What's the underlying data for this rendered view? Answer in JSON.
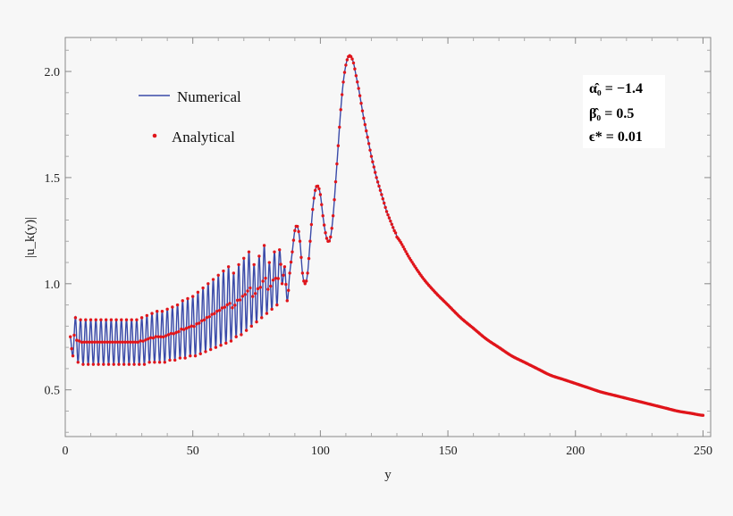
{
  "chart_data": {
    "type": "line",
    "title": "",
    "xlabel": "y",
    "ylabel": "|u_k(y)|",
    "xlim": [
      0,
      253
    ],
    "ylim": [
      0.28,
      2.16
    ],
    "xticks": [
      0,
      50,
      100,
      150,
      200,
      250
    ],
    "yticks": [
      0.5,
      1.0,
      1.5,
      2.0
    ],
    "xtick_labels": [
      "0",
      "50",
      "100",
      "150",
      "200",
      "250"
    ],
    "ytick_labels": [
      "0.5",
      "1.0",
      "1.5",
      "2.0"
    ],
    "grid": false,
    "legend_position": "top-left",
    "colors": {
      "numerical": "#3a4aa8",
      "analytical": "#e0151b",
      "frame": "#888888"
    },
    "series": [
      {
        "name": "Numerical",
        "style": "line"
      },
      {
        "name": "Analytical",
        "style": "points"
      }
    ],
    "curve_samples": {
      "x": [
        2,
        3,
        4,
        5,
        6,
        7,
        8,
        9,
        10,
        11,
        12,
        13,
        14,
        15,
        16,
        17,
        18,
        19,
        20,
        21,
        22,
        23,
        24,
        25,
        26,
        27,
        28,
        29,
        30,
        31,
        32,
        33,
        34,
        35,
        36,
        37,
        38,
        39,
        40,
        41,
        42,
        43,
        44,
        45,
        46,
        47,
        48,
        49,
        50,
        51,
        52,
        53,
        54,
        55,
        56,
        57,
        58,
        59,
        60,
        61,
        62,
        63,
        64,
        65,
        66,
        67,
        68,
        69,
        70,
        71,
        72,
        73,
        74,
        75,
        76,
        77,
        78,
        79,
        80,
        81,
        82,
        83,
        84,
        85,
        86,
        87,
        88,
        89,
        90,
        91,
        92,
        93,
        94,
        95,
        96,
        97,
        98,
        99,
        100,
        101,
        102,
        103,
        104,
        105,
        106,
        107,
        108,
        109,
        110,
        111,
        112,
        113,
        114,
        115,
        116,
        117,
        118,
        119,
        120,
        121,
        122,
        123,
        124,
        125,
        126,
        127,
        128,
        129,
        130,
        135,
        140,
        145,
        150,
        155,
        160,
        165,
        170,
        175,
        180,
        185,
        190,
        195,
        200,
        205,
        210,
        215,
        220,
        225,
        230,
        235,
        240,
        245,
        250
      ],
      "y": [
        0.75,
        0.66,
        0.84,
        0.63,
        0.83,
        0.62,
        0.83,
        0.62,
        0.83,
        0.62,
        0.83,
        0.62,
        0.83,
        0.62,
        0.83,
        0.62,
        0.83,
        0.62,
        0.83,
        0.62,
        0.83,
        0.62,
        0.83,
        0.62,
        0.83,
        0.62,
        0.83,
        0.62,
        0.84,
        0.62,
        0.85,
        0.63,
        0.86,
        0.63,
        0.87,
        0.63,
        0.87,
        0.63,
        0.88,
        0.64,
        0.89,
        0.64,
        0.9,
        0.65,
        0.92,
        0.65,
        0.93,
        0.66,
        0.94,
        0.66,
        0.96,
        0.67,
        0.98,
        0.68,
        1.0,
        0.69,
        1.02,
        0.7,
        1.04,
        0.71,
        1.06,
        0.72,
        1.08,
        0.73,
        1.05,
        0.75,
        1.09,
        0.76,
        1.12,
        0.78,
        1.15,
        0.8,
        1.09,
        0.82,
        1.13,
        0.84,
        1.18,
        0.86,
        1.1,
        0.88,
        1.15,
        0.9,
        1.16,
        1.0,
        1.08,
        0.92,
        1.05,
        1.15,
        1.25,
        1.27,
        1.2,
        1.05,
        1.0,
        1.05,
        1.2,
        1.35,
        1.44,
        1.46,
        1.42,
        1.32,
        1.24,
        1.2,
        1.22,
        1.32,
        1.48,
        1.65,
        1.82,
        1.95,
        2.03,
        2.07,
        2.07,
        2.04,
        1.98,
        1.92,
        1.85,
        1.78,
        1.72,
        1.66,
        1.6,
        1.55,
        1.5,
        1.46,
        1.42,
        1.38,
        1.34,
        1.31,
        1.28,
        1.25,
        1.22,
        1.12,
        1.03,
        0.96,
        0.9,
        0.84,
        0.79,
        0.74,
        0.7,
        0.66,
        0.63,
        0.6,
        0.57,
        0.55,
        0.53,
        0.51,
        0.49,
        0.475,
        0.46,
        0.445,
        0.43,
        0.415,
        0.4,
        0.39,
        0.38
      ]
    }
  },
  "legend": {
    "numerical": "Numerical",
    "analytical": "Analytical"
  },
  "params": {
    "alpha": "α̂₀ = −1.4",
    "beta": "β̂₀ = 0.5",
    "epsilon": "ϵ* = 0.01"
  }
}
